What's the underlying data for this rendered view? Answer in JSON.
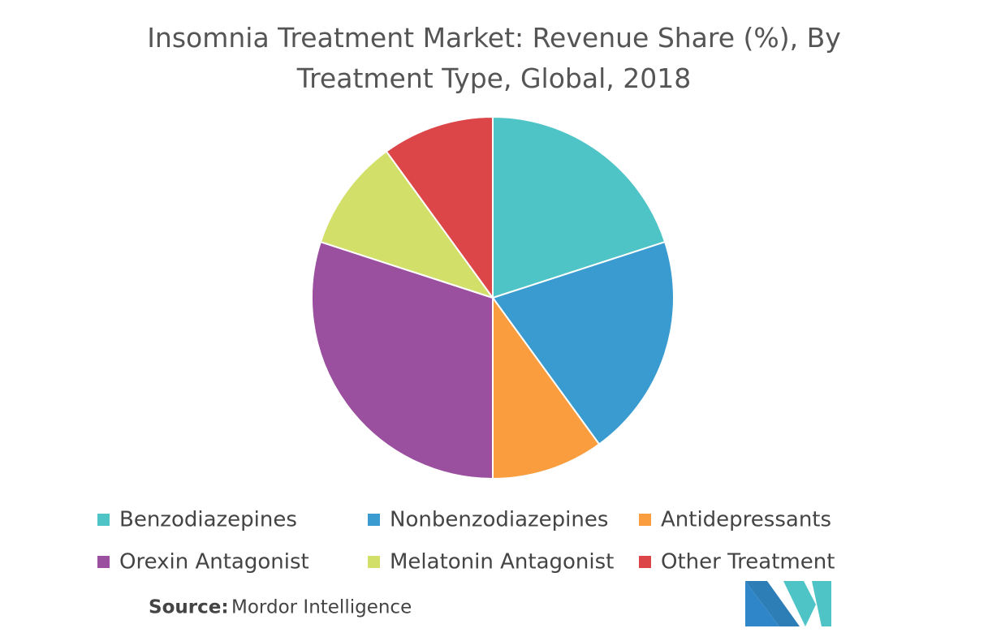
{
  "chart_data": {
    "type": "pie",
    "title": "Insomnia Treatment Market: Revenue Share (%), By Treatment Type, Global, 2018",
    "categories": [
      "Benzodiazepines",
      "Nonbenzodiazepines",
      "Antidepressants",
      "Orexin Antagonist",
      "Melatonin Antagonist",
      "Other Treatment"
    ],
    "values": [
      20,
      20,
      10,
      30,
      10,
      10
    ],
    "colors": [
      "#4fc4c6",
      "#3a9bd0",
      "#f99d3f",
      "#9b4f9f",
      "#d2df69",
      "#dc4649"
    ],
    "source_label": "Source:",
    "source": "Mordor Intelligence"
  }
}
